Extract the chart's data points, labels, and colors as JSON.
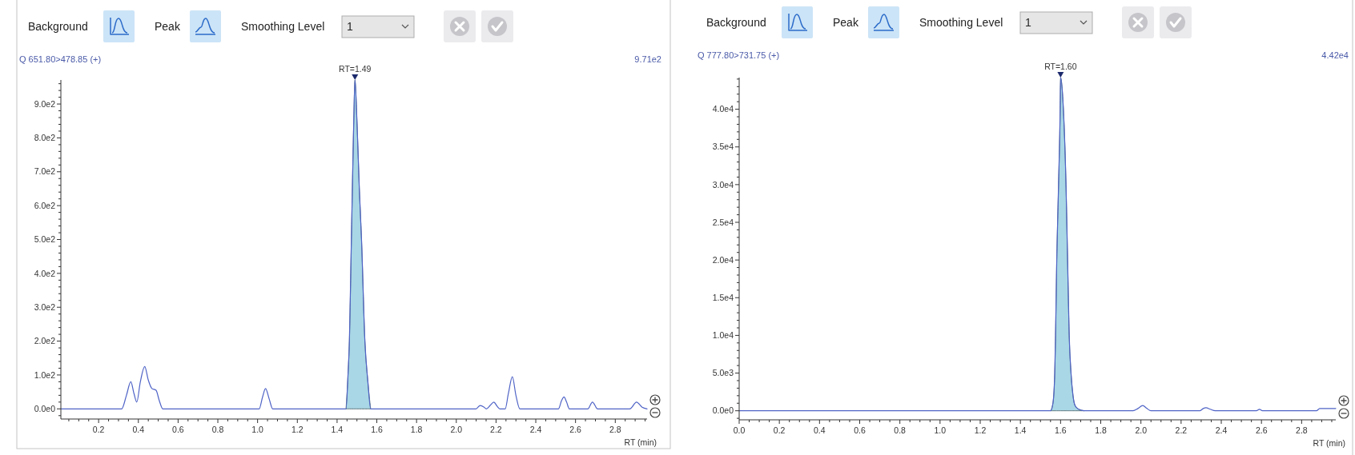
{
  "chart_data": [
    {
      "type": "other",
      "annotations": [
        "Background",
        "Peak",
        "Smoothing Level",
        "1"
      ]
    },
    {
      "type": "line",
      "title": "Q 651.80>478.85 (+)",
      "xlabel": "RT (min)",
      "series": [
        {
          "type": "area",
          "color": "#a9d7e5",
          "x": [
            1.445,
            1.455,
            1.462,
            1.472,
            1.484,
            1.49,
            1.5,
            1.512,
            1.523,
            1.54,
            1.555,
            1.569
          ],
          "values": [
            0,
            100,
            200,
            500,
            850,
            971,
            850,
            650,
            500,
            200,
            80,
            0
          ]
        },
        {
          "type": "line",
          "color": "#4f63c6",
          "x": [
            0.01,
            0.316,
            0.34,
            0.362,
            0.378,
            0.392,
            0.41,
            0.432,
            0.45,
            0.468,
            0.489,
            0.505,
            0.523,
            1.008,
            1.025,
            1.04,
            1.058,
            1.076,
            1.445,
            1.455,
            1.462,
            1.472,
            1.484,
            1.49,
            1.5,
            1.512,
            1.523,
            1.54,
            1.555,
            1.569,
            2.099,
            2.12,
            2.14,
            2.151,
            2.17,
            2.189,
            2.205,
            2.219,
            2.246,
            2.262,
            2.282,
            2.3,
            2.32,
            2.514,
            2.53,
            2.542,
            2.555,
            2.569,
            2.662,
            2.685,
            2.711,
            2.873,
            2.907,
            2.935,
            2.96
          ],
          "values": [
            0,
            0,
            40,
            80,
            45,
            20,
            80,
            125,
            85,
            60,
            55,
            25,
            0,
            0,
            35,
            60,
            30,
            0,
            0,
            100,
            200,
            500,
            850,
            971,
            850,
            650,
            500,
            200,
            80,
            0,
            0,
            10,
            5,
            0,
            10,
            20,
            8,
            0,
            0,
            45,
            95,
            40,
            0,
            0,
            25,
            35,
            20,
            0,
            0,
            20,
            0,
            0,
            20,
            5,
            0
          ]
        }
      ],
      "xlim": [
        0.01,
        2.96
      ],
      "ylim": [
        -30,
        971
      ],
      "xticks": [
        {
          "value": 0.05,
          "label": null
        },
        {
          "value": 0.1,
          "label": null
        },
        {
          "value": 0.15,
          "label": null
        },
        {
          "value": 0.2,
          "label": "0.2"
        },
        {
          "value": 0.25,
          "label": null
        },
        {
          "value": 0.3,
          "label": null
        },
        {
          "value": 0.35,
          "label": null
        },
        {
          "value": 0.4,
          "label": "0.4"
        },
        {
          "value": 0.45,
          "label": null
        },
        {
          "value": 0.5,
          "label": null
        },
        {
          "value": 0.55,
          "label": null
        },
        {
          "value": 0.6,
          "label": "0.6"
        },
        {
          "value": 0.65,
          "label": null
        },
        {
          "value": 0.7,
          "label": null
        },
        {
          "value": 0.75,
          "label": null
        },
        {
          "value": 0.8,
          "label": "0.8"
        },
        {
          "value": 0.85,
          "label": null
        },
        {
          "value": 0.9,
          "label": null
        },
        {
          "value": 0.95,
          "label": null
        },
        {
          "value": 1.0,
          "label": "1.0"
        },
        {
          "value": 1.05,
          "label": null
        },
        {
          "value": 1.1,
          "label": null
        },
        {
          "value": 1.15,
          "label": null
        },
        {
          "value": 1.2,
          "label": "1.2"
        },
        {
          "value": 1.25,
          "label": null
        },
        {
          "value": 1.3,
          "label": null
        },
        {
          "value": 1.35,
          "label": null
        },
        {
          "value": 1.4,
          "label": "1.4"
        },
        {
          "value": 1.45,
          "label": null
        },
        {
          "value": 1.5,
          "label": null
        },
        {
          "value": 1.55,
          "label": null
        },
        {
          "value": 1.6,
          "label": "1.6"
        },
        {
          "value": 1.65,
          "label": null
        },
        {
          "value": 1.7,
          "label": null
        },
        {
          "value": 1.75,
          "label": null
        },
        {
          "value": 1.8,
          "label": "1.8"
        },
        {
          "value": 1.85,
          "label": null
        },
        {
          "value": 1.9,
          "label": null
        },
        {
          "value": 1.95,
          "label": null
        },
        {
          "value": 2.0,
          "label": "2.0"
        },
        {
          "value": 2.05,
          "label": null
        },
        {
          "value": 2.1,
          "label": null
        },
        {
          "value": 2.15,
          "label": null
        },
        {
          "value": 2.2,
          "label": "2.2"
        },
        {
          "value": 2.25,
          "label": null
        },
        {
          "value": 2.3,
          "label": null
        },
        {
          "value": 2.35,
          "label": null
        },
        {
          "value": 2.4,
          "label": "2.4"
        },
        {
          "value": 2.45,
          "label": null
        },
        {
          "value": 2.5,
          "label": null
        },
        {
          "value": 2.55,
          "label": null
        },
        {
          "value": 2.6,
          "label": "2.6"
        },
        {
          "value": 2.65,
          "label": null
        },
        {
          "value": 2.7,
          "label": null
        },
        {
          "value": 2.75,
          "label": null
        },
        {
          "value": 2.8,
          "label": "2.8"
        },
        {
          "value": 2.85,
          "label": null
        },
        {
          "value": 2.9,
          "label": null
        },
        {
          "value": 2.95,
          "label": null
        }
      ],
      "yticks": [
        {
          "value": -20,
          "label": null
        },
        {
          "value": 0,
          "label": "0.0e0"
        },
        {
          "value": 20,
          "label": null
        },
        {
          "value": 40,
          "label": null
        },
        {
          "value": 60,
          "label": null
        },
        {
          "value": 80,
          "label": null
        },
        {
          "value": 100,
          "label": "1.0e2"
        },
        {
          "value": 120,
          "label": null
        },
        {
          "value": 140,
          "label": null
        },
        {
          "value": 160,
          "label": null
        },
        {
          "value": 180,
          "label": null
        },
        {
          "value": 200,
          "label": "2.0e2"
        },
        {
          "value": 220,
          "label": null
        },
        {
          "value": 240,
          "label": null
        },
        {
          "value": 260,
          "label": null
        },
        {
          "value": 280,
          "label": null
        },
        {
          "value": 300,
          "label": "3.0e2"
        },
        {
          "value": 320,
          "label": null
        },
        {
          "value": 340,
          "label": null
        },
        {
          "value": 360,
          "label": null
        },
        {
          "value": 380,
          "label": null
        },
        {
          "value": 400,
          "label": "4.0e2"
        },
        {
          "value": 420,
          "label": null
        },
        {
          "value": 440,
          "label": null
        },
        {
          "value": 460,
          "label": null
        },
        {
          "value": 480,
          "label": null
        },
        {
          "value": 500,
          "label": "5.0e2"
        },
        {
          "value": 520,
          "label": null
        },
        {
          "value": 540,
          "label": null
        },
        {
          "value": 560,
          "label": null
        },
        {
          "value": 580,
          "label": null
        },
        {
          "value": 600,
          "label": "6.0e2"
        },
        {
          "value": 620,
          "label": null
        },
        {
          "value": 640,
          "label": null
        },
        {
          "value": 660,
          "label": null
        },
        {
          "value": 680,
          "label": null
        },
        {
          "value": 700,
          "label": "7.0e2"
        },
        {
          "value": 720,
          "label": null
        },
        {
          "value": 740,
          "label": null
        },
        {
          "value": 760,
          "label": null
        },
        {
          "value": 780,
          "label": null
        },
        {
          "value": 800,
          "label": "8.0e2"
        },
        {
          "value": 820,
          "label": null
        },
        {
          "value": 840,
          "label": null
        },
        {
          "value": 860,
          "label": null
        },
        {
          "value": 880,
          "label": null
        },
        {
          "value": 900,
          "label": "9.0e2"
        },
        {
          "value": 920,
          "label": null
        },
        {
          "value": 940,
          "label": null
        },
        {
          "value": 960,
          "label": null
        }
      ],
      "annotations": [
        {
          "text": "RT=1.49",
          "x": 1.49,
          "y": 971
        },
        "9.71e2"
      ]
    },
    {
      "type": "other",
      "annotations": [
        "Background",
        "Peak",
        "Smoothing Level",
        "1"
      ]
    },
    {
      "type": "line",
      "title": "Q 777.80>731.75 (+)",
      "xlabel": "RT (min)",
      "series": [
        {
          "type": "area",
          "color": "#a9d7e5",
          "x": [
            1.55,
            1.562,
            1.571,
            1.575,
            1.581,
            1.59,
            1.598,
            1.6,
            1.614,
            1.627,
            1.635,
            1.643,
            1.652,
            1.662,
            1.672,
            1.69,
            1.718
          ],
          "values": [
            0,
            1000,
            5000,
            10000,
            20000,
            30000,
            40000,
            44200,
            40000,
            30000,
            20000,
            10000,
            5000,
            2000,
            700,
            200,
            0
          ]
        },
        {
          "type": "line",
          "color": "#4f63c6",
          "x": [
            0,
            1.55,
            1.562,
            1.571,
            1.575,
            1.581,
            1.59,
            1.598,
            1.6,
            1.614,
            1.627,
            1.635,
            1.643,
            1.652,
            1.662,
            1.672,
            1.69,
            1.718,
            1.961,
            1.985,
            2.009,
            2.03,
            2.05,
            2.293,
            2.31,
            2.324,
            2.345,
            2.37,
            2.575,
            2.59,
            2.605,
            2.874,
            2.89,
            2.97
          ],
          "values": [
            0,
            0,
            1000,
            5000,
            10000,
            20000,
            30000,
            40000,
            44200,
            40000,
            30000,
            20000,
            10000,
            5000,
            2000,
            700,
            200,
            0,
            0,
            300,
            700,
            300,
            0,
            0,
            300,
            400,
            200,
            0,
            0,
            200,
            0,
            0,
            300,
            300
          ]
        }
      ],
      "xlim": [
        0,
        2.97
      ],
      "ylim": [
        -1200,
        44200
      ],
      "xticks": [
        {
          "value": 0,
          "label": "0.0"
        },
        {
          "value": 0.05,
          "label": null
        },
        {
          "value": 0.1,
          "label": null
        },
        {
          "value": 0.15,
          "label": null
        },
        {
          "value": 0.2,
          "label": "0.2"
        },
        {
          "value": 0.25,
          "label": null
        },
        {
          "value": 0.3,
          "label": null
        },
        {
          "value": 0.35,
          "label": null
        },
        {
          "value": 0.4,
          "label": "0.4"
        },
        {
          "value": 0.45,
          "label": null
        },
        {
          "value": 0.5,
          "label": null
        },
        {
          "value": 0.55,
          "label": null
        },
        {
          "value": 0.6,
          "label": "0.6"
        },
        {
          "value": 0.65,
          "label": null
        },
        {
          "value": 0.7,
          "label": null
        },
        {
          "value": 0.75,
          "label": null
        },
        {
          "value": 0.8,
          "label": "0.8"
        },
        {
          "value": 0.85,
          "label": null
        },
        {
          "value": 0.9,
          "label": null
        },
        {
          "value": 0.95,
          "label": null
        },
        {
          "value": 1.0,
          "label": "1.0"
        },
        {
          "value": 1.05,
          "label": null
        },
        {
          "value": 1.1,
          "label": null
        },
        {
          "value": 1.15,
          "label": null
        },
        {
          "value": 1.2,
          "label": "1.2"
        },
        {
          "value": 1.25,
          "label": null
        },
        {
          "value": 1.3,
          "label": null
        },
        {
          "value": 1.35,
          "label": null
        },
        {
          "value": 1.4,
          "label": "1.4"
        },
        {
          "value": 1.45,
          "label": null
        },
        {
          "value": 1.5,
          "label": null
        },
        {
          "value": 1.55,
          "label": null
        },
        {
          "value": 1.6,
          "label": "1.6"
        },
        {
          "value": 1.65,
          "label": null
        },
        {
          "value": 1.7,
          "label": null
        },
        {
          "value": 1.75,
          "label": null
        },
        {
          "value": 1.8,
          "label": "1.8"
        },
        {
          "value": 1.85,
          "label": null
        },
        {
          "value": 1.9,
          "label": null
        },
        {
          "value": 1.95,
          "label": null
        },
        {
          "value": 2.0,
          "label": "2.0"
        },
        {
          "value": 2.05,
          "label": null
        },
        {
          "value": 2.1,
          "label": null
        },
        {
          "value": 2.15,
          "label": null
        },
        {
          "value": 2.2,
          "label": "2.2"
        },
        {
          "value": 2.25,
          "label": null
        },
        {
          "value": 2.3,
          "label": null
        },
        {
          "value": 2.35,
          "label": null
        },
        {
          "value": 2.4,
          "label": "2.4"
        },
        {
          "value": 2.45,
          "label": null
        },
        {
          "value": 2.5,
          "label": null
        },
        {
          "value": 2.55,
          "label": null
        },
        {
          "value": 2.6,
          "label": "2.6"
        },
        {
          "value": 2.65,
          "label": null
        },
        {
          "value": 2.7,
          "label": null
        },
        {
          "value": 2.75,
          "label": null
        },
        {
          "value": 2.8,
          "label": "2.8"
        },
        {
          "value": 2.85,
          "label": null
        },
        {
          "value": 2.9,
          "label": null
        },
        {
          "value": 2.95,
          "label": null
        }
      ],
      "yticks": [
        {
          "value": -1000,
          "label": null
        },
        {
          "value": 0,
          "label": "0.0e0"
        },
        {
          "value": 1000,
          "label": null
        },
        {
          "value": 2000,
          "label": null
        },
        {
          "value": 3000,
          "label": null
        },
        {
          "value": 4000,
          "label": null
        },
        {
          "value": 5000,
          "label": "5.0e3"
        },
        {
          "value": 6000,
          "label": null
        },
        {
          "value": 7000,
          "label": null
        },
        {
          "value": 8000,
          "label": null
        },
        {
          "value": 9000,
          "label": null
        },
        {
          "value": 10000,
          "label": "1.0e4"
        },
        {
          "value": 11000,
          "label": null
        },
        {
          "value": 12000,
          "label": null
        },
        {
          "value": 13000,
          "label": null
        },
        {
          "value": 14000,
          "label": null
        },
        {
          "value": 15000,
          "label": "1.5e4"
        },
        {
          "value": 16000,
          "label": null
        },
        {
          "value": 17000,
          "label": null
        },
        {
          "value": 18000,
          "label": null
        },
        {
          "value": 19000,
          "label": null
        },
        {
          "value": 20000,
          "label": "2.0e4"
        },
        {
          "value": 21000,
          "label": null
        },
        {
          "value": 22000,
          "label": null
        },
        {
          "value": 23000,
          "label": null
        },
        {
          "value": 24000,
          "label": null
        },
        {
          "value": 25000,
          "label": "2.5e4"
        },
        {
          "value": 26000,
          "label": null
        },
        {
          "value": 27000,
          "label": null
        },
        {
          "value": 28000,
          "label": null
        },
        {
          "value": 29000,
          "label": null
        },
        {
          "value": 30000,
          "label": "3.0e4"
        },
        {
          "value": 31000,
          "label": null
        },
        {
          "value": 32000,
          "label": null
        },
        {
          "value": 33000,
          "label": null
        },
        {
          "value": 34000,
          "label": null
        },
        {
          "value": 35000,
          "label": "3.5e4"
        },
        {
          "value": 36000,
          "label": null
        },
        {
          "value": 37000,
          "label": null
        },
        {
          "value": 38000,
          "label": null
        },
        {
          "value": 39000,
          "label": null
        },
        {
          "value": 40000,
          "label": "4.0e4"
        },
        {
          "value": 41000,
          "label": null
        },
        {
          "value": 42000,
          "label": null
        },
        {
          "value": 43000,
          "label": null
        },
        {
          "value": 44000,
          "label": null
        }
      ],
      "annotations": [
        {
          "text": "RT=1.60",
          "x": 1.6,
          "y": 44200
        },
        "4.42e4"
      ]
    }
  ]
}
